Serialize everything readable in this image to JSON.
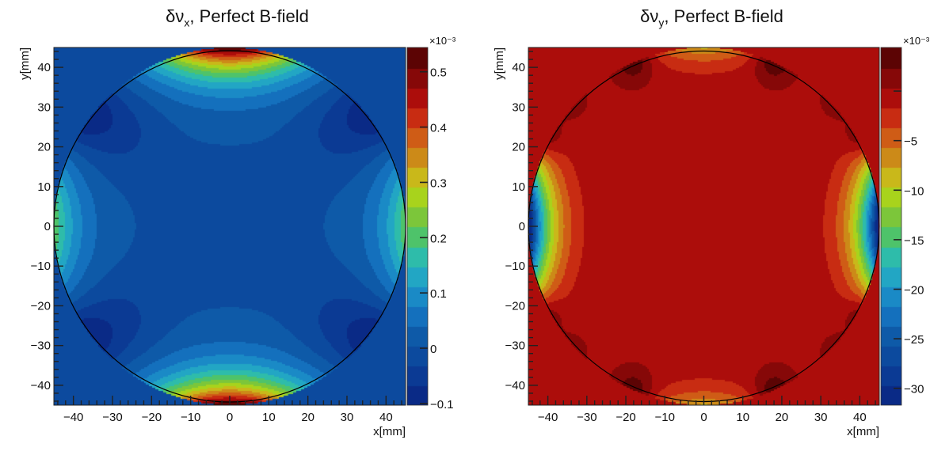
{
  "chart_data": [
    {
      "type": "heatmap",
      "subtype": "filled-contour",
      "title": "δν_x, Perfect B-field",
      "title_main": "δν",
      "title_sub": "x",
      "title_rest": ", Perfect B-field",
      "xlabel": "x[mm]",
      "ylabel": "y[mm]",
      "xlim": [
        -45,
        45
      ],
      "ylim": [
        -45,
        45
      ],
      "x_ticks": [
        -40,
        -30,
        -20,
        -10,
        0,
        10,
        20,
        30,
        40
      ],
      "y_ticks": [
        -40,
        -30,
        -20,
        -10,
        0,
        10,
        20,
        30,
        40
      ],
      "x_tick_labels": [
        "−40",
        "−30",
        "−20",
        "−10",
        "0",
        "10",
        "20",
        "30",
        "40"
      ],
      "y_tick_labels": [
        "−40",
        "−30",
        "−20",
        "−10",
        "0",
        "10",
        "20",
        "30",
        "40"
      ],
      "aperture_radius_mm": 45,
      "colorbar": {
        "exponent_label": "×10⁻³",
        "zlim": [
          -0.103,
          0.544
        ],
        "n_levels": 18,
        "ticks": [
          -0.1,
          0,
          0.1,
          0.2,
          0.3,
          0.4,
          0.5
        ],
        "tick_labels": [
          "−0.1",
          "0",
          "0.1",
          "0.2",
          "0.3",
          "0.4",
          "0.5"
        ]
      },
      "pattern": {
        "description": "Field high (≈0.54e-3) at top and bottom of aperture (y=±45), moderate (≈0.2e-3) at left/right edges (x=±45, y=0), lowest (≈−0.1e-3) in four diagonal lobes near (±40,±30); center ≈0.",
        "outside_value": 0.0,
        "max_at": [
          [
            0,
            45
          ],
          [
            0,
            -45
          ]
        ],
        "min_at": [
          [
            -40,
            30
          ],
          [
            40,
            30
          ],
          [
            -40,
            -30
          ],
          [
            40,
            -30
          ]
        ]
      }
    },
    {
      "type": "heatmap",
      "subtype": "filled-contour",
      "title": "δν_y, Perfect B-field",
      "title_main": "δν",
      "title_sub": "y",
      "title_rest": ", Perfect B-field",
      "xlabel": "x[mm]",
      "ylabel": "y[mm]",
      "xlim": [
        -45,
        45
      ],
      "ylim": [
        -45,
        45
      ],
      "x_ticks": [
        -40,
        -30,
        -20,
        -10,
        0,
        10,
        20,
        30,
        40
      ],
      "y_ticks": [
        -40,
        -30,
        -20,
        -10,
        0,
        10,
        20,
        30,
        40
      ],
      "x_tick_labels": [
        "−40",
        "−30",
        "−20",
        "−10",
        "0",
        "10",
        "20",
        "30",
        "40"
      ],
      "y_tick_labels": [
        "−40",
        "−30",
        "−20",
        "−10",
        "0",
        "10",
        "20",
        "30",
        "40"
      ],
      "aperture_radius_mm": 45,
      "colorbar": {
        "exponent_label": "×10⁻³",
        "zlim": [
          -31.7,
          4.4
        ],
        "n_levels": 18,
        "ticks": [
          0,
          -5,
          -10,
          -15,
          -20,
          -25,
          -30
        ],
        "tick_labels": [
          "",
          "−5",
          "−10",
          "−15",
          "−20",
          "−25",
          "−30"
        ]
      },
      "pattern": {
        "description": "Field ≈0 over most of aperture; strongly negative (≈−31e-3) at left/right edges (x=±45, y=0); mildly negative (≈−8e-3) at top/bottom (y=±45); small positive lobes (≈+3e-3) near (±40,±22) and (±18,±42).",
        "outside_value": 0.0,
        "min_at": [
          [
            -45,
            0
          ],
          [
            45,
            0
          ]
        ]
      }
    }
  ]
}
